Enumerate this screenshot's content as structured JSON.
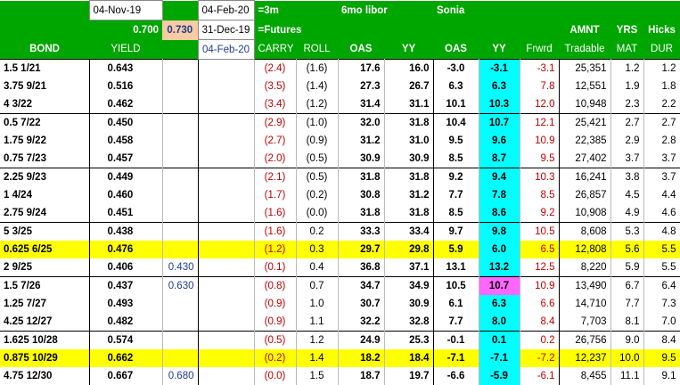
{
  "header": {
    "date1": "04-Nov-19",
    "date2": "04-Feb-20",
    "label_3m": "=3m",
    "label_6mo": "6mo libor",
    "label_sonia": "Sonia",
    "val_0700": "0.700",
    "val_0730": "0.730",
    "date3": "31-Dec-19",
    "label_futures": "=Futures",
    "date4": "04-Feb-20",
    "amnt": "AMNT",
    "yrs": "YRS",
    "hicks": "Hicks"
  },
  "columns": {
    "bond": "BOND",
    "yield": "YIELD",
    "carry": "CARRY",
    "roll": "ROLL",
    "oas": "OAS",
    "yy": "YY",
    "soas": "OAS",
    "syy": "YY",
    "frwd": "Frwrd",
    "tradable": "Tradable",
    "mat": "MAT",
    "dur": "DUR"
  },
  "rows": [
    {
      "bond": "1.5  1/21",
      "yield": "0.643",
      "extra": "",
      "carry": "(2.4)",
      "roll": "(1.6)",
      "oas": "17.6",
      "yy": "16.0",
      "soas": "-3.0",
      "syy": "-3.1",
      "frwd": "-3.1",
      "amnt": "25,351",
      "mat": "1.2",
      "dur": "1.2"
    },
    {
      "bond": "3.75  9/21",
      "yield": "0.516",
      "extra": "",
      "carry": "(3.5)",
      "roll": "(1.4)",
      "oas": "27.3",
      "yy": "26.7",
      "soas": "6.3",
      "syy": "6.3",
      "frwd": "7.8",
      "amnt": "12,551",
      "mat": "1.9",
      "dur": "1.8"
    },
    {
      "bond": "4  3/22",
      "yield": "0.462",
      "extra": "",
      "carry": "(3.4)",
      "roll": "(1.2)",
      "oas": "31.4",
      "yy": "31.1",
      "soas": "10.1",
      "syy": "10.3",
      "frwd": "12.0",
      "amnt": "10,948",
      "mat": "2.3",
      "dur": "2.2"
    },
    {
      "bond": "0.5  7/22",
      "yield": "0.450",
      "extra": "",
      "carry": "(2.9)",
      "roll": "(1.0)",
      "oas": "32.0",
      "yy": "31.8",
      "soas": "10.4",
      "syy": "10.7",
      "frwd": "12.1",
      "amnt": "25,421",
      "mat": "2.7",
      "dur": "2.7"
    },
    {
      "bond": "1.75  9/22",
      "yield": "0.458",
      "extra": "",
      "carry": "(2.7)",
      "roll": "(0.9)",
      "oas": "31.2",
      "yy": "31.0",
      "soas": "9.5",
      "syy": "9.6",
      "frwd": "10.9",
      "amnt": "22,385",
      "mat": "2.9",
      "dur": "2.8"
    },
    {
      "bond": "0.75  7/23",
      "yield": "0.457",
      "extra": "",
      "carry": "(2.0)",
      "roll": "(0.5)",
      "oas": "30.9",
      "yy": "30.9",
      "soas": "8.5",
      "syy": "8.7",
      "frwd": "9.5",
      "amnt": "27,402",
      "mat": "3.7",
      "dur": "3.7"
    },
    {
      "bond": "2.25  9/23",
      "yield": "0.449",
      "extra": "",
      "carry": "(2.1)",
      "roll": "(0.5)",
      "oas": "31.8",
      "yy": "31.8",
      "soas": "9.2",
      "syy": "9.4",
      "frwd": "10.3",
      "amnt": "16,241",
      "mat": "3.8",
      "dur": "3.7"
    },
    {
      "bond": "1  4/24",
      "yield": "0.460",
      "extra": "",
      "carry": "(1.7)",
      "roll": "(0.2)",
      "oas": "30.8",
      "yy": "31.2",
      "soas": "7.7",
      "syy": "7.8",
      "frwd": "8.5",
      "amnt": "26,857",
      "mat": "4.5",
      "dur": "4.4"
    },
    {
      "bond": "2.75  9/24",
      "yield": "0.451",
      "extra": "",
      "carry": "(1.6)",
      "roll": "(0.0)",
      "oas": "31.8",
      "yy": "31.8",
      "soas": "8.5",
      "syy": "8.6",
      "frwd": "9.2",
      "amnt": "10,908",
      "mat": "4.9",
      "dur": "4.6"
    },
    {
      "bond": "5  3/25",
      "yield": "0.438",
      "extra": "",
      "carry": "(1.6)",
      "roll": "0.2",
      "oas": "33.3",
      "yy": "33.4",
      "soas": "9.7",
      "syy": "9.8",
      "frwd": "10.5",
      "amnt": "8,608",
      "mat": "5.3",
      "dur": "4.8"
    },
    {
      "bond": "0.625  6/25",
      "yield": "0.476",
      "extra": "",
      "carry": "(1.2)",
      "roll": "0.3",
      "oas": "29.7",
      "yy": "29.8",
      "soas": "5.9",
      "syy": "6.0",
      "frwd": "6.5",
      "amnt": "12,808",
      "mat": "5.6",
      "dur": "5.5"
    },
    {
      "bond": "2  9/25",
      "yield": "0.406",
      "extra": "0.430",
      "carry": "(0.1)",
      "roll": "0.4",
      "oas": "36.8",
      "yy": "37.1",
      "soas": "13.1",
      "syy": "13.2",
      "frwd": "12.5",
      "amnt": "8,220",
      "mat": "5.9",
      "dur": "5.5"
    },
    {
      "bond": "1.5  7/26",
      "yield": "0.437",
      "extra": "0.630",
      "carry": "(0.8)",
      "roll": "0.7",
      "oas": "34.7",
      "yy": "34.9",
      "soas": "10.5",
      "syy": "10.7",
      "frwd": "10.9",
      "amnt": "13,490",
      "mat": "6.7",
      "dur": "6.4"
    },
    {
      "bond": "1.25  7/27",
      "yield": "0.493",
      "extra": "",
      "carry": "(0.9)",
      "roll": "1.0",
      "oas": "30.7",
      "yy": "30.9",
      "soas": "6.1",
      "syy": "6.3",
      "frwd": "6.6",
      "amnt": "14,710",
      "mat": "7.7",
      "dur": "7.3"
    },
    {
      "bond": "4.25  12/27",
      "yield": "0.482",
      "extra": "",
      "carry": "(0.9)",
      "roll": "1.1",
      "oas": "32.2",
      "yy": "32.8",
      "soas": "7.7",
      "syy": "8.0",
      "frwd": "8.4",
      "amnt": "7,703",
      "mat": "8.1",
      "dur": "7.0"
    },
    {
      "bond": "1.625  10/28",
      "yield": "0.574",
      "extra": "",
      "carry": "(0.5)",
      "roll": "1.2",
      "oas": "24.9",
      "yy": "25.3",
      "soas": "-0.1",
      "syy": "0.1",
      "frwd": "0.2",
      "amnt": "26,756",
      "mat": "9.0",
      "dur": "8.4"
    },
    {
      "bond": "0.875  10/29",
      "yield": "0.662",
      "extra": "",
      "carry": "(0.2)",
      "roll": "1.4",
      "oas": "18.2",
      "yy": "18.4",
      "soas": "-7.1",
      "syy": "-7.1",
      "frwd": "-7.2",
      "amnt": "12,237",
      "mat": "10.0",
      "dur": "9.5"
    },
    {
      "bond": "4.75  12/30",
      "yield": "0.667",
      "extra": "0.680",
      "carry": "(0.0)",
      "roll": "1.5",
      "oas": "18.7",
      "yy": "19.7",
      "soas": "-6.6",
      "syy": "-5.9",
      "frwd": "-6.1",
      "amnt": "8,455",
      "mat": "11.1",
      "dur": "9.1"
    }
  ],
  "colors": {
    "header_green": "#00a600",
    "highlight_yellow": "#ffff00",
    "sonia_cyan": "#00ffff",
    "highlight_pink": "#ff66ff",
    "negative_red": "#c00000",
    "peach": "#f8cba3"
  }
}
